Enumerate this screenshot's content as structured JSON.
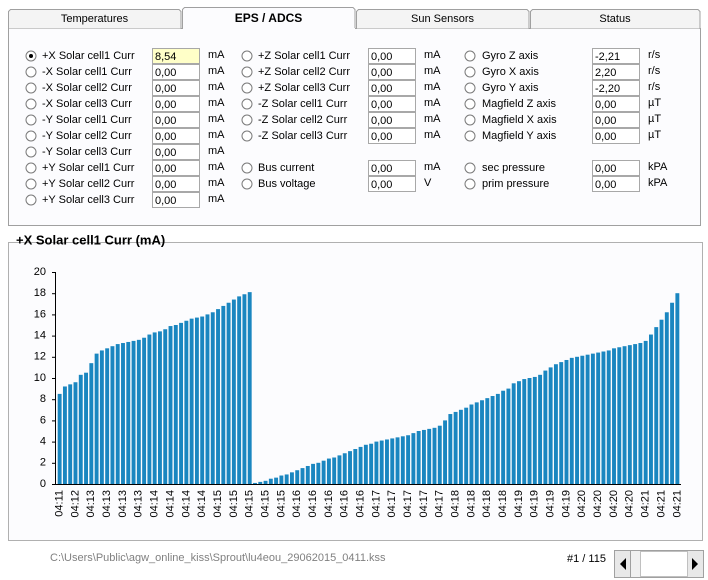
{
  "tabs": {
    "items": [
      "Temperatures",
      "EPS / ADCS",
      "Sun Sensors",
      "Status"
    ],
    "active": 1
  },
  "form": {
    "columns": [
      [
        {
          "label": "+X Solar cell1 Curr",
          "value": "8,54",
          "unit": "mA",
          "checked": true
        },
        {
          "label": "-X Solar cell1 Curr",
          "value": "0,00",
          "unit": "mA"
        },
        {
          "label": "-X Solar cell2 Curr",
          "value": "0,00",
          "unit": "mA"
        },
        {
          "label": "-X Solar cell3 Curr",
          "value": "0,00",
          "unit": "mA"
        },
        {
          "label": "-Y Solar cell1 Curr",
          "value": "0,00",
          "unit": "mA"
        },
        {
          "label": "-Y Solar cell2 Curr",
          "value": "0,00",
          "unit": "mA"
        },
        {
          "label": "-Y Solar cell3 Curr",
          "value": "0,00",
          "unit": "mA"
        },
        {
          "label": "+Y Solar cell1 Curr",
          "value": "0,00",
          "unit": "mA"
        },
        {
          "label": "+Y Solar cell2 Curr",
          "value": "0,00",
          "unit": "mA"
        },
        {
          "label": "+Y Solar cell3 Curr",
          "value": "0,00",
          "unit": "mA"
        }
      ],
      [
        {
          "label": "+Z Solar cell1 Curr",
          "value": "0,00",
          "unit": "mA"
        },
        {
          "label": "+Z Solar cell2 Curr",
          "value": "0,00",
          "unit": "mA"
        },
        {
          "label": "+Z Solar cell3 Curr",
          "value": "0,00",
          "unit": "mA"
        },
        {
          "label": "-Z Solar cell1 Curr",
          "value": "0,00",
          "unit": "mA"
        },
        {
          "label": "-Z Solar cell2 Curr",
          "value": "0,00",
          "unit": "mA"
        },
        {
          "label": "-Z Solar cell3 Curr",
          "value": "0,00",
          "unit": "mA"
        },
        {
          "label": "Bus current",
          "value": "0,00",
          "unit": "mA"
        },
        {
          "label": "Bus voltage",
          "value": "0,00",
          "unit": "V"
        }
      ],
      [
        {
          "label": "Gyro Z axis",
          "value": "-2,21",
          "unit": "r/s"
        },
        {
          "label": "Gyro X axis",
          "value": "2,20",
          "unit": "r/s"
        },
        {
          "label": "Gyro Y axis",
          "value": "-2,20",
          "unit": "r/s"
        },
        {
          "label": "Magfield Z axis",
          "value": "0,00",
          "unit": "µT"
        },
        {
          "label": "Magfield X axis",
          "value": "0,00",
          "unit": "µT"
        },
        {
          "label": "Magfield Y axis",
          "value": "0,00",
          "unit": "µT"
        },
        {
          "label": "sec pressure",
          "value": "0,00",
          "unit": "kPA"
        },
        {
          "label": "prim pressure",
          "value": "0,00",
          "unit": "kPA"
        }
      ]
    ]
  },
  "chart_data": {
    "type": "bar",
    "title": "+X Solar cell1 Curr (mA)",
    "color": "#1a86c0",
    "ylim": [
      0,
      20
    ],
    "yticks": [
      0,
      2,
      4,
      6,
      8,
      10,
      12,
      14,
      16,
      18,
      20
    ],
    "grid": false,
    "categories": [
      "04:11",
      null,
      null,
      "04:12",
      null,
      null,
      "04:13",
      null,
      null,
      "04:13",
      null,
      null,
      "04:13",
      null,
      null,
      "04:13",
      null,
      null,
      "04:14",
      null,
      null,
      "04:14",
      null,
      null,
      "04:14",
      null,
      null,
      "04:14",
      null,
      null,
      "04:15",
      null,
      null,
      "04:15",
      null,
      null,
      "04:15",
      null,
      null,
      "04:15",
      null,
      null,
      "04:15",
      null,
      null,
      "04:16",
      null,
      null,
      "04:16",
      null,
      null,
      "04:16",
      null,
      null,
      "04:16",
      null,
      null,
      "04:16",
      null,
      null,
      "04:17",
      null,
      null,
      "04:17",
      null,
      null,
      "04:17",
      null,
      null,
      "04:17",
      null,
      null,
      "04:17",
      null,
      null,
      "04:18",
      null,
      null,
      "04:18",
      null,
      null,
      "04:18",
      null,
      null,
      "04:18",
      null,
      null,
      "04:19",
      null,
      null,
      "04:19",
      null,
      null,
      "04:19",
      null,
      null,
      "04:19",
      null,
      null,
      "04:20",
      null,
      null,
      "04:20",
      null,
      null,
      "04:20",
      null,
      null,
      "04:20",
      null,
      null,
      "04:21",
      null,
      null,
      "04:21",
      null,
      null,
      "04:21"
    ],
    "values": [
      8.5,
      9.2,
      9.4,
      9.6,
      10.3,
      10.5,
      11.4,
      12.3,
      12.6,
      12.8,
      13.0,
      13.2,
      13.3,
      13.4,
      13.5,
      13.6,
      13.8,
      14.1,
      14.3,
      14.4,
      14.6,
      14.9,
      15.0,
      15.2,
      15.4,
      15.6,
      15.7,
      15.8,
      16.0,
      16.2,
      16.5,
      16.8,
      17.1,
      17.4,
      17.7,
      17.9,
      18.1,
      0.1,
      0.2,
      0.3,
      0.5,
      0.6,
      0.8,
      0.9,
      1.1,
      1.3,
      1.5,
      1.7,
      1.9,
      2.0,
      2.2,
      2.4,
      2.5,
      2.7,
      2.9,
      3.1,
      3.3,
      3.5,
      3.7,
      3.8,
      4.0,
      4.1,
      4.2,
      4.3,
      4.4,
      4.5,
      4.6,
      4.8,
      5.0,
      5.1,
      5.2,
      5.3,
      5.5,
      6.0,
      6.6,
      6.8,
      7.0,
      7.2,
      7.5,
      7.7,
      7.9,
      8.1,
      8.3,
      8.5,
      8.8,
      9.0,
      9.5,
      9.7,
      9.9,
      10.0,
      10.1,
      10.3,
      10.7,
      11.0,
      11.3,
      11.5,
      11.7,
      11.9,
      12.0,
      12.1,
      12.2,
      12.3,
      12.4,
      12.5,
      12.6,
      12.8,
      12.9,
      13.0,
      13.1,
      13.2,
      13.3,
      13.5,
      14.1,
      14.8,
      15.5,
      16.2,
      17.1,
      18.0
    ]
  },
  "footer": {
    "path": "C:\\Users\\Public\\agw_online_kiss\\Sprout\\lu4eou_29062015_0411.kss",
    "record": "#1 / 115"
  }
}
